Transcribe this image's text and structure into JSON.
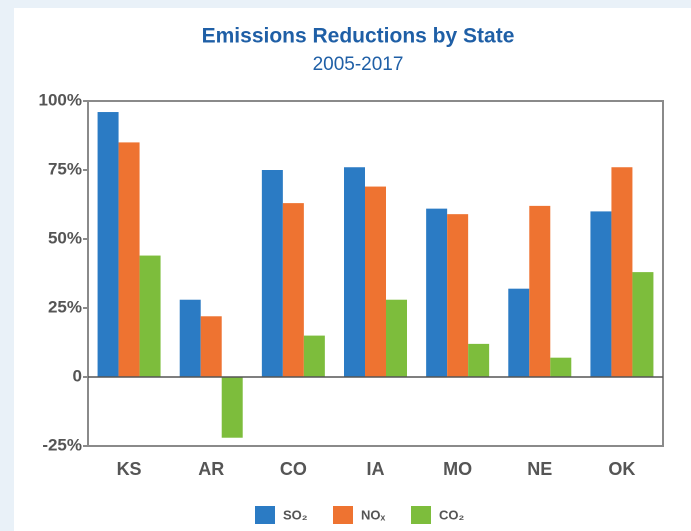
{
  "chart_data": {
    "type": "bar",
    "title": "Emissions Reductions by State",
    "subtitle": "2005-2017",
    "categories": [
      "KS",
      "AR",
      "CO",
      "IA",
      "MO",
      "NE",
      "OK"
    ],
    "series": [
      {
        "name": "SO₂",
        "color": "#2b7bc4",
        "values": [
          96,
          28,
          75,
          76,
          61,
          32,
          60
        ]
      },
      {
        "name": "NOₓ",
        "color": "#ee7331",
        "values": [
          85,
          22,
          63,
          69,
          59,
          62,
          76
        ]
      },
      {
        "name": "CO₂",
        "color": "#7dbd3c",
        "values": [
          44,
          -22,
          15,
          28,
          12,
          7,
          38
        ]
      }
    ],
    "ylim": [
      -25,
      100
    ],
    "yticks": [
      {
        "value": -25,
        "label": "-25%"
      },
      0,
      {
        "value": 25,
        "label": "25%"
      },
      {
        "value": 50,
        "label": "50%"
      },
      {
        "value": 75,
        "label": "75%"
      },
      {
        "value": 100,
        "label": "100%"
      }
    ],
    "grid": false,
    "legend": "bottom"
  }
}
